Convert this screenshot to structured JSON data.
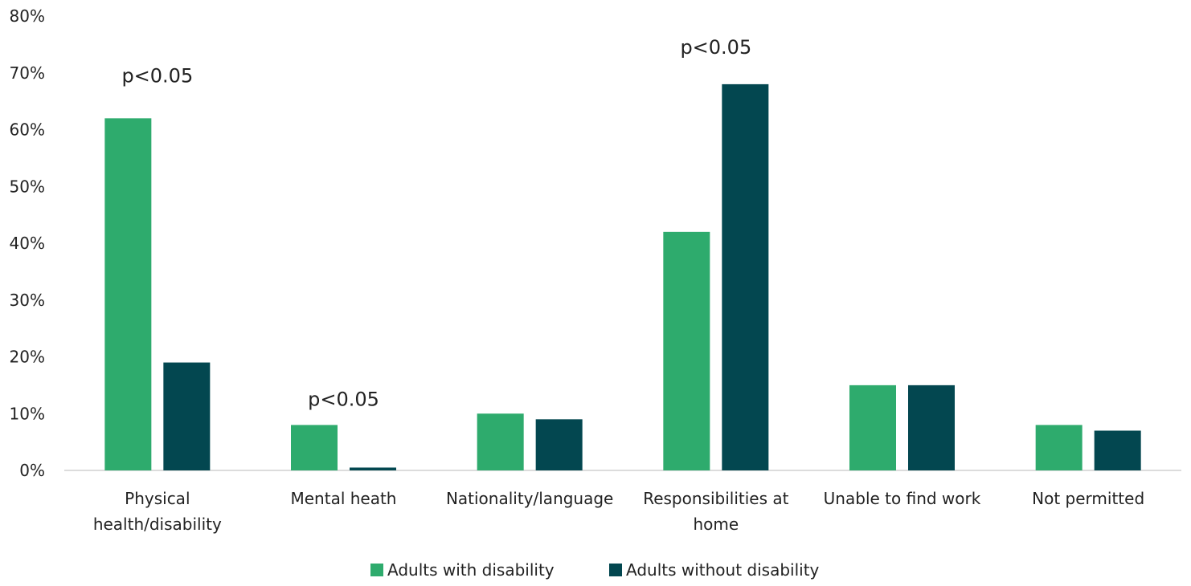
{
  "chart_data": {
    "type": "bar",
    "title": "",
    "xlabel": "",
    "ylabel": "",
    "ylim": [
      0,
      80
    ],
    "y_ticks": [
      "0%",
      "10%",
      "20%",
      "30%",
      "40%",
      "50%",
      "60%",
      "70%",
      "80%"
    ],
    "grid": false,
    "legend_position": "bottom",
    "categories": [
      [
        "Physical",
        "health/disability"
      ],
      [
        "Mental heath"
      ],
      [
        "Nationality/language"
      ],
      [
        "Responsibilities at",
        "home"
      ],
      [
        "Unable to find work"
      ],
      [
        "Not permitted"
      ]
    ],
    "series": [
      {
        "name": "Adults with disability",
        "color": "#2eab6d",
        "values": [
          62,
          8,
          10,
          42,
          15,
          8
        ]
      },
      {
        "name": "Adults without disability",
        "color": "#034750",
        "values": [
          19,
          0.5,
          9,
          68,
          15,
          7
        ]
      }
    ],
    "annotations": [
      {
        "category_index": 0,
        "text": "p<0.05",
        "at_value": 69.5
      },
      {
        "category_index": 1,
        "text": "p<0.05",
        "at_value": 12.5
      },
      {
        "category_index": 3,
        "text": "p<0.05",
        "at_value": 74.5
      }
    ]
  }
}
